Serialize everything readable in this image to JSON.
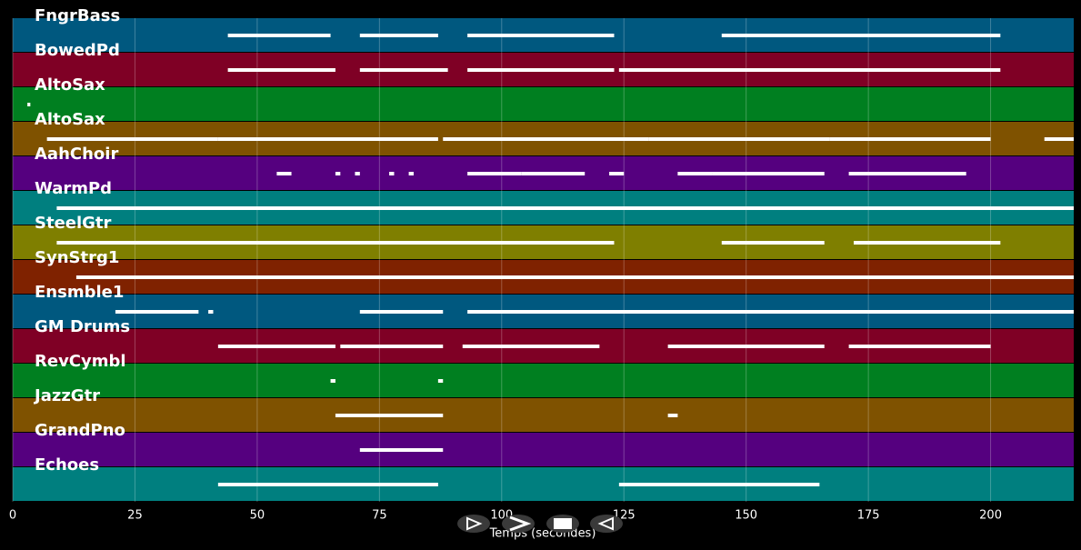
{
  "chart_data": {
    "type": "piano-roll",
    "xlabel": "Temps (secondes)",
    "xlim": [
      0,
      217
    ],
    "xticks": [
      0,
      25,
      50,
      75,
      100,
      125,
      150,
      175,
      200
    ],
    "grid": true,
    "tracks": [
      {
        "name": "FngrBass",
        "color": "#00587f",
        "notes": [
          [
            44,
            65
          ],
          [
            71,
            87
          ],
          [
            93,
            123
          ],
          [
            145,
            202
          ]
        ]
      },
      {
        "name": "BowedPd",
        "color": "#7f0025",
        "notes": [
          [
            44,
            66
          ],
          [
            71,
            89
          ],
          [
            93,
            123
          ],
          [
            124,
            172
          ],
          [
            172,
            202
          ]
        ]
      },
      {
        "name": "AltoSax",
        "color": "#007f20",
        "notes": [
          [
            3,
            3.6
          ]
        ]
      },
      {
        "name": "AltoSax",
        "color": "#7f5200",
        "notes": [
          [
            7,
            42
          ],
          [
            42,
            87
          ],
          [
            88,
            130
          ],
          [
            130,
            167
          ],
          [
            167,
            200
          ],
          [
            211,
            217
          ]
        ]
      },
      {
        "name": "AahChoir",
        "color": "#55007f",
        "notes": [
          [
            54,
            57
          ],
          [
            66,
            67
          ],
          [
            70,
            71
          ],
          [
            77,
            78
          ],
          [
            81,
            82
          ],
          [
            93,
            104
          ],
          [
            104,
            117
          ],
          [
            122,
            125
          ],
          [
            136,
            143
          ],
          [
            143,
            166
          ],
          [
            171,
            195
          ]
        ]
      },
      {
        "name": "WarmPd",
        "color": "#007f7f",
        "notes": [
          [
            9,
            217
          ]
        ]
      },
      {
        "name": "SteelGtr",
        "color": "#7f7f00",
        "notes": [
          [
            9,
            123
          ],
          [
            145,
            166
          ],
          [
            172,
            202
          ]
        ]
      },
      {
        "name": "SynStrg1",
        "color": "#7f2200",
        "notes": [
          [
            13,
            217
          ]
        ]
      },
      {
        "name": "Ensmble1",
        "color": "#00587f",
        "notes": [
          [
            21,
            38
          ],
          [
            40,
            41
          ],
          [
            71,
            88
          ],
          [
            93,
            217
          ]
        ]
      },
      {
        "name": "GM Drums",
        "color": "#7f0025",
        "notes": [
          [
            42,
            66
          ],
          [
            67,
            72
          ],
          [
            71,
            88
          ],
          [
            92,
            120
          ],
          [
            134,
            166
          ],
          [
            171,
            200
          ]
        ]
      },
      {
        "name": "RevCymbl",
        "color": "#007f20",
        "notes": [
          [
            65,
            66
          ],
          [
            87,
            88
          ]
        ]
      },
      {
        "name": "JazzGtr",
        "color": "#7f5200",
        "notes": [
          [
            66,
            88
          ],
          [
            134,
            136
          ]
        ]
      },
      {
        "name": "GrandPno",
        "color": "#55007f",
        "notes": [
          [
            71,
            88
          ]
        ]
      },
      {
        "name": "Echoes",
        "color": "#007f7f",
        "notes": [
          [
            42,
            87
          ],
          [
            124,
            165
          ]
        ]
      }
    ]
  }
}
